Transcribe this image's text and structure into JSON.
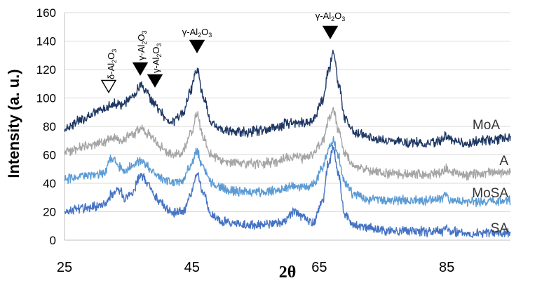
{
  "chart_data": {
    "type": "line",
    "title": "",
    "xlabel": "2θ",
    "ylabel": "Intensity (a. u.)",
    "xlim": [
      25,
      95
    ],
    "ylim": [
      0,
      160
    ],
    "x_ticks": [
      25,
      45,
      65,
      85
    ],
    "y_ticks": [
      0,
      20,
      40,
      60,
      80,
      100,
      120,
      140,
      160
    ],
    "grid": "horizontal",
    "legend": "inline labels at right end of each series",
    "series": [
      {
        "name": "MoA",
        "color": "#1f3864",
        "x": [
          25,
          28,
          31,
          32.5,
          34,
          35.5,
          37,
          38,
          39,
          40,
          41,
          42,
          43.5,
          44.8,
          45.8,
          46.8,
          48,
          50,
          53,
          56,
          58,
          60,
          61,
          62.5,
          64,
          65.5,
          66.5,
          67.2,
          68,
          69,
          70.5,
          73,
          76,
          79,
          82,
          84,
          84.8,
          85.8,
          88,
          91,
          95
        ],
        "y": [
          79,
          85,
          92,
          96,
          95,
          100,
          108,
          103,
          96,
          90,
          85,
          84,
          88,
          105,
          121,
          100,
          83,
          77,
          76,
          77,
          79,
          82,
          83,
          82,
          85,
          98,
          120,
          134,
          110,
          86,
          76,
          72,
          70,
          69,
          68,
          70,
          74,
          70,
          68,
          70,
          72
        ]
      },
      {
        "name": "A",
        "color": "#a5a5a5",
        "x": [
          25,
          28,
          31,
          32.5,
          34,
          35.5,
          37,
          38,
          39,
          40,
          41,
          42,
          43.5,
          44.8,
          45.8,
          46.8,
          48,
          50,
          53,
          56,
          58,
          60,
          61,
          62.5,
          64,
          65.5,
          66.5,
          67.2,
          68,
          69,
          70.5,
          73,
          76,
          79,
          82,
          84,
          84.8,
          85.8,
          88,
          91,
          95
        ],
        "y": [
          62,
          66,
          69,
          72,
          71,
          74,
          78,
          75,
          70,
          66,
          62,
          60,
          62,
          75,
          89,
          72,
          60,
          56,
          54,
          54,
          55,
          58,
          59,
          58,
          60,
          70,
          85,
          92,
          78,
          60,
          52,
          49,
          47,
          46,
          46,
          47,
          50,
          47,
          46,
          47,
          48
        ]
      },
      {
        "name": "MoSA",
        "color": "#5b9bd5",
        "x": [
          25,
          28,
          31,
          32.5,
          33.5,
          34.5,
          35.5,
          37,
          38,
          39,
          40,
          41,
          42,
          43.5,
          44.8,
          45.8,
          46.8,
          48,
          50,
          53,
          56,
          58,
          60,
          61,
          62.5,
          64,
          65.5,
          66.5,
          67.2,
          68,
          69,
          70.5,
          73,
          76,
          79,
          82,
          84,
          84.8,
          85.8,
          88,
          91,
          95
        ],
        "y": [
          43,
          45,
          47,
          57,
          52,
          48,
          52,
          56,
          52,
          47,
          44,
          41,
          40,
          42,
          52,
          62,
          50,
          40,
          36,
          34,
          34,
          35,
          37,
          38,
          37,
          39,
          50,
          65,
          70,
          58,
          40,
          32,
          29,
          28,
          28,
          28,
          29,
          31,
          28,
          27,
          27,
          28
        ]
      },
      {
        "name": "SA",
        "color": "#4472c4",
        "x": [
          25,
          28,
          31,
          32.5,
          33.5,
          34.5,
          35.5,
          37,
          38,
          39,
          40,
          41,
          42,
          43.5,
          44.8,
          45.8,
          46.8,
          48,
          50,
          53,
          56,
          58,
          60,
          61,
          62.5,
          64,
          65.5,
          66.5,
          67.2,
          68,
          69,
          70.5,
          73,
          76,
          79,
          82,
          84,
          84.8,
          85.8,
          88,
          91,
          95
        ],
        "y": [
          20,
          22,
          25,
          32,
          36,
          30,
          33,
          46,
          40,
          32,
          27,
          22,
          19,
          20,
          32,
          46,
          32,
          18,
          13,
          11,
          11,
          12,
          15,
          20,
          16,
          13,
          28,
          55,
          65,
          45,
          18,
          10,
          8,
          7,
          7,
          6,
          6,
          8,
          6,
          5,
          5,
          5
        ]
      }
    ],
    "annotations": [
      {
        "label": "δ-Al2O3",
        "x": 32,
        "y": 105,
        "marker": "open-down-triangle"
      },
      {
        "label": "γ-Al2O3",
        "x": 37,
        "y": 112,
        "marker": "filled-down-triangle"
      },
      {
        "label": "γ-Al2O3",
        "x": 39.5,
        "y": 104,
        "marker": "filled-down-triangle"
      },
      {
        "label": "γ-Al2O3",
        "x": 46,
        "y": 135,
        "marker": "filled-down-triangle"
      },
      {
        "label": "γ-Al2O3",
        "x": 67,
        "y": 153,
        "marker": "filled-down-triangle"
      }
    ]
  }
}
